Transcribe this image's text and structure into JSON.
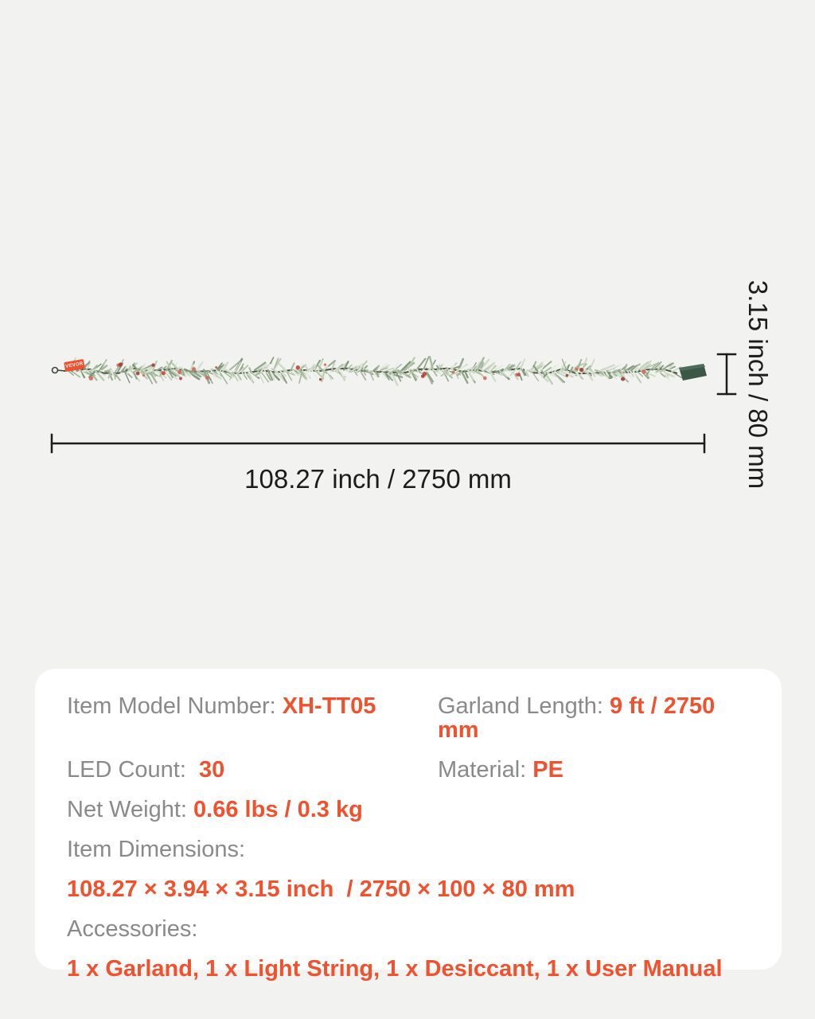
{
  "colors": {
    "accent": "#F1512D",
    "label_gray": "#8A8A8A",
    "ink": "#1C1C1C",
    "page_bg": "#F2F2F0",
    "panel_bg": "#FFFFFF"
  },
  "dimensions": {
    "length_label": "108.27 inch / 2750 mm",
    "height_label": "3.15 inch / 80 mm"
  },
  "garland": {
    "tag_text": "VEVOR"
  },
  "specs": {
    "model": {
      "label": "Item Model Number: ",
      "value": "XH-TT05"
    },
    "garland_length": {
      "label": "Garland Length: ",
      "value": "9 ft / 2750 mm"
    },
    "led_count": {
      "label": "LED Count:  ",
      "value": "30"
    },
    "material": {
      "label": "Material: ",
      "value": "PE"
    },
    "net_weight": {
      "label": "Net Weight: ",
      "value": "0.66 lbs / 0.3 kg"
    },
    "item_dimensions": {
      "label": "Item Dimensions:",
      "value": "108.27 × 3.94 × 3.15 inch  / 2750 × 100 × 80 mm"
    },
    "accessories": {
      "label": "Accessories:",
      "value": "1 x Garland, 1 x Light String, 1 x Desiccant, 1 x User Manual"
    }
  }
}
